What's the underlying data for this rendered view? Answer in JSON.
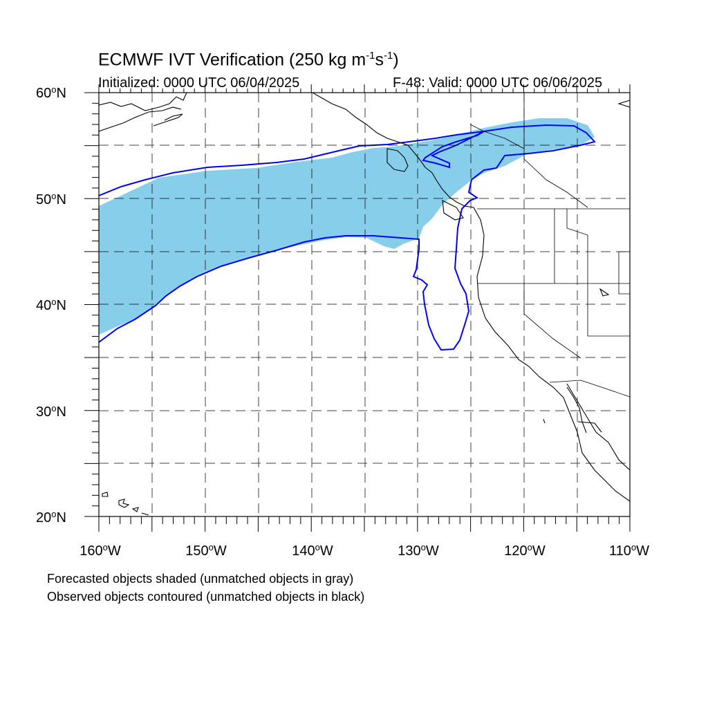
{
  "header": {
    "title_main": "ECMWF IVT Verification (250 kg m",
    "title_exp1": "-1",
    "title_mid": "s",
    "title_exp2": "-1",
    "title_end": ")",
    "initialized": "Initialized: 0000 UTC 06/04/2025",
    "valid": "F-48: Valid: 0000 UTC 06/06/2025"
  },
  "axes": {
    "lat_labels": [
      {
        "value": "60",
        "suffix": "N"
      },
      {
        "value": "50",
        "suffix": "N"
      },
      {
        "value": "40",
        "suffix": "N"
      },
      {
        "value": "30",
        "suffix": "N"
      },
      {
        "value": "20",
        "suffix": "N"
      }
    ],
    "lon_labels": [
      {
        "value": "160",
        "suffix": "W"
      },
      {
        "value": "150",
        "suffix": "W"
      },
      {
        "value": "140",
        "suffix": "W"
      },
      {
        "value": "130",
        "suffix": "W"
      },
      {
        "value": "120",
        "suffix": "W"
      },
      {
        "value": "110",
        "suffix": "W"
      }
    ],
    "lat_range": [
      20,
      60
    ],
    "lon_range": [
      -160,
      -110
    ],
    "gridlines": "dashed every 5 degrees"
  },
  "notes": {
    "forecast": "Forecasted objects shaded (unmatched objects in gray)",
    "observed": "Observed objects contoured (unmatched objects in black)"
  },
  "colors": {
    "forecast_fill": "#87ceeb",
    "observed_contour": "#0000ff",
    "coastline": "#000000",
    "grid": "#000000"
  }
}
